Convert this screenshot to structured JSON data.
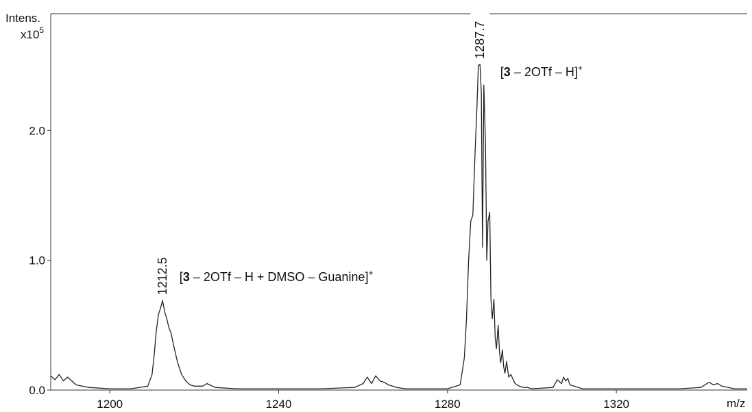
{
  "chart_data": {
    "type": "line",
    "x_label": "m/z",
    "y_label": "Intens.",
    "y_multiplier": "x10",
    "y_multiplier_exponent": "5",
    "xlim": [
      1186,
      1351
    ],
    "ylim": [
      0,
      2.9
    ],
    "x_ticks": [
      1200,
      1240,
      1280,
      1320
    ],
    "y_ticks": [
      {
        "value": 0,
        "label": "0.0"
      },
      {
        "value": 1,
        "label": "1.0"
      },
      {
        "value": 2,
        "label": "2.0"
      }
    ],
    "grid": false,
    "series_color": "#222222",
    "series": [
      {
        "x": [
          1186,
          1187,
          1188,
          1189,
          1190,
          1192,
          1195,
          1200,
          1205,
          1209,
          1210,
          1210.5,
          1211,
          1211.5,
          1212,
          1212.5,
          1213,
          1213.5,
          1214,
          1214.5,
          1215,
          1216,
          1217,
          1218,
          1219,
          1220,
          1222,
          1223,
          1225,
          1230,
          1240,
          1250,
          1258,
          1260,
          1261,
          1262,
          1263,
          1264,
          1265,
          1266,
          1268,
          1270,
          1275,
          1280,
          1283,
          1284,
          1284.5,
          1285,
          1285.5,
          1286,
          1286.5,
          1287,
          1287.3,
          1287.7,
          1288,
          1288.3,
          1288.6,
          1289,
          1289.3,
          1289.6,
          1290,
          1290.3,
          1290.6,
          1291,
          1291.3,
          1291.6,
          1292,
          1292.3,
          1292.6,
          1293,
          1293.3,
          1293.6,
          1294,
          1294.5,
          1295,
          1296,
          1297,
          1298,
          1299,
          1300,
          1305,
          1306,
          1307,
          1307.5,
          1308,
          1308.5,
          1309,
          1310,
          1312,
          1320,
          1335,
          1340,
          1341,
          1342,
          1343,
          1344,
          1345,
          1348,
          1351
        ],
        "y": [
          0.11,
          0.08,
          0.12,
          0.07,
          0.1,
          0.04,
          0.02,
          0.01,
          0.01,
          0.03,
          0.12,
          0.27,
          0.45,
          0.58,
          0.63,
          0.69,
          0.6,
          0.55,
          0.48,
          0.44,
          0.36,
          0.22,
          0.12,
          0.07,
          0.04,
          0.03,
          0.03,
          0.05,
          0.02,
          0.01,
          0.01,
          0.01,
          0.02,
          0.05,
          0.1,
          0.05,
          0.11,
          0.07,
          0.06,
          0.04,
          0.02,
          0.01,
          0.01,
          0.01,
          0.04,
          0.25,
          0.55,
          1.0,
          1.3,
          1.35,
          1.8,
          2.2,
          2.5,
          2.51,
          2.3,
          1.1,
          2.35,
          1.9,
          1.0,
          1.3,
          1.37,
          0.7,
          0.55,
          0.7,
          0.4,
          0.32,
          0.5,
          0.3,
          0.21,
          0.31,
          0.18,
          0.13,
          0.22,
          0.1,
          0.12,
          0.05,
          0.03,
          0.02,
          0.02,
          0.01,
          0.02,
          0.08,
          0.05,
          0.1,
          0.07,
          0.09,
          0.04,
          0.03,
          0.01,
          0.01,
          0.01,
          0.02,
          0.04,
          0.06,
          0.04,
          0.05,
          0.03,
          0.01,
          0.01
        ]
      }
    ],
    "peak_labels": [
      {
        "x": 1212.5,
        "y": 0.69,
        "label": "1212.5"
      },
      {
        "x": 1287.7,
        "y": 2.51,
        "label": "1287.7"
      }
    ],
    "annotations": [
      {
        "x": 1216.5,
        "y": 0.84,
        "bold": "3",
        "pre": "[",
        "post": " – 2OTf – H + DMSO – Guanine]",
        "sup": "+"
      },
      {
        "x": 1292.5,
        "y": 2.42,
        "bold": "3",
        "pre": "[",
        "post": " – 2OTf – H]",
        "sup": "+"
      }
    ]
  }
}
